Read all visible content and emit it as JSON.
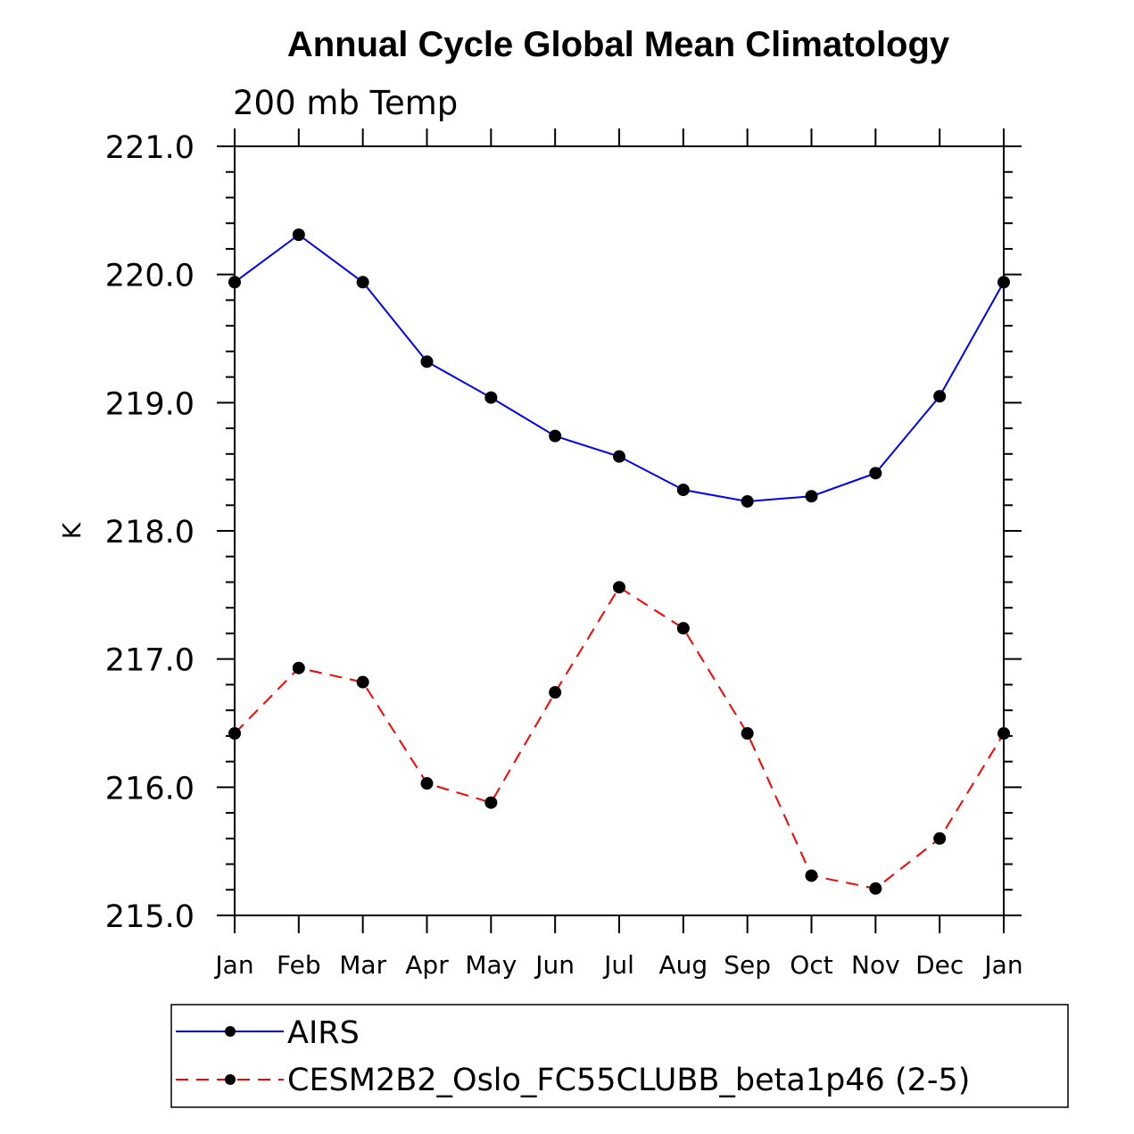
{
  "chart_data": {
    "type": "line",
    "title": "Annual Cycle Global Mean Climatology",
    "subtitle": "200 mb Temp",
    "ylabel": "K",
    "xlabel": "",
    "ylim": [
      215.0,
      221.0
    ],
    "yticks": [
      "215.0",
      "216.0",
      "217.0",
      "218.0",
      "219.0",
      "220.0",
      "221.0"
    ],
    "categories": [
      "Jan",
      "Feb",
      "Mar",
      "Apr",
      "May",
      "Jun",
      "Jul",
      "Aug",
      "Sep",
      "Oct",
      "Nov",
      "Dec",
      "Jan"
    ],
    "series": [
      {
        "name": "AIRS",
        "color": "#0000ff",
        "dash": "solid",
        "values": [
          219.94,
          220.31,
          219.94,
          219.32,
          219.04,
          218.74,
          218.58,
          218.32,
          218.23,
          218.27,
          218.45,
          219.05,
          219.94
        ]
      },
      {
        "name": "CESM2B2_Oslo_FC55CLUBB_beta1p46 (2-5)",
        "color": "#ff0000",
        "dash": "dashed",
        "values": [
          216.42,
          216.93,
          216.82,
          216.03,
          215.88,
          216.74,
          217.56,
          217.24,
          216.42,
          215.31,
          215.21,
          215.6,
          216.42
        ]
      }
    ],
    "legend_position": "bottom"
  }
}
